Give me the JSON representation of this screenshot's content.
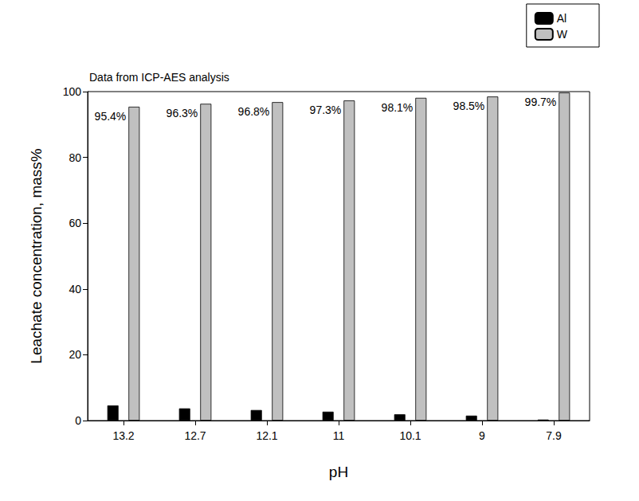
{
  "chart_data": {
    "type": "bar",
    "annotation": "Data from ICP-AES analysis",
    "x_label": "pH",
    "y_label": "Leachate concentration, mass%",
    "categories": [
      "13.2",
      "12.7",
      "12.1",
      "11",
      "10.1",
      "9",
      "7.9"
    ],
    "series": [
      {
        "name": "Al",
        "color": "#000000",
        "values": [
          4.6,
          3.7,
          3.2,
          2.7,
          1.9,
          1.5,
          0.3
        ]
      },
      {
        "name": "W",
        "color": "#c0c0c0",
        "values": [
          95.4,
          96.3,
          96.8,
          97.3,
          98.1,
          98.5,
          99.7
        ],
        "data_labels": true,
        "value_labels": [
          "95.4%",
          "96.3%",
          "96.8%",
          "97.3%",
          "98.1%",
          "98.5%",
          "99.7%"
        ]
      }
    ],
    "ylim": [
      0,
      100
    ],
    "yticks": [
      0,
      20,
      40,
      60,
      80,
      100
    ],
    "grid": false,
    "legend": "upper right"
  }
}
